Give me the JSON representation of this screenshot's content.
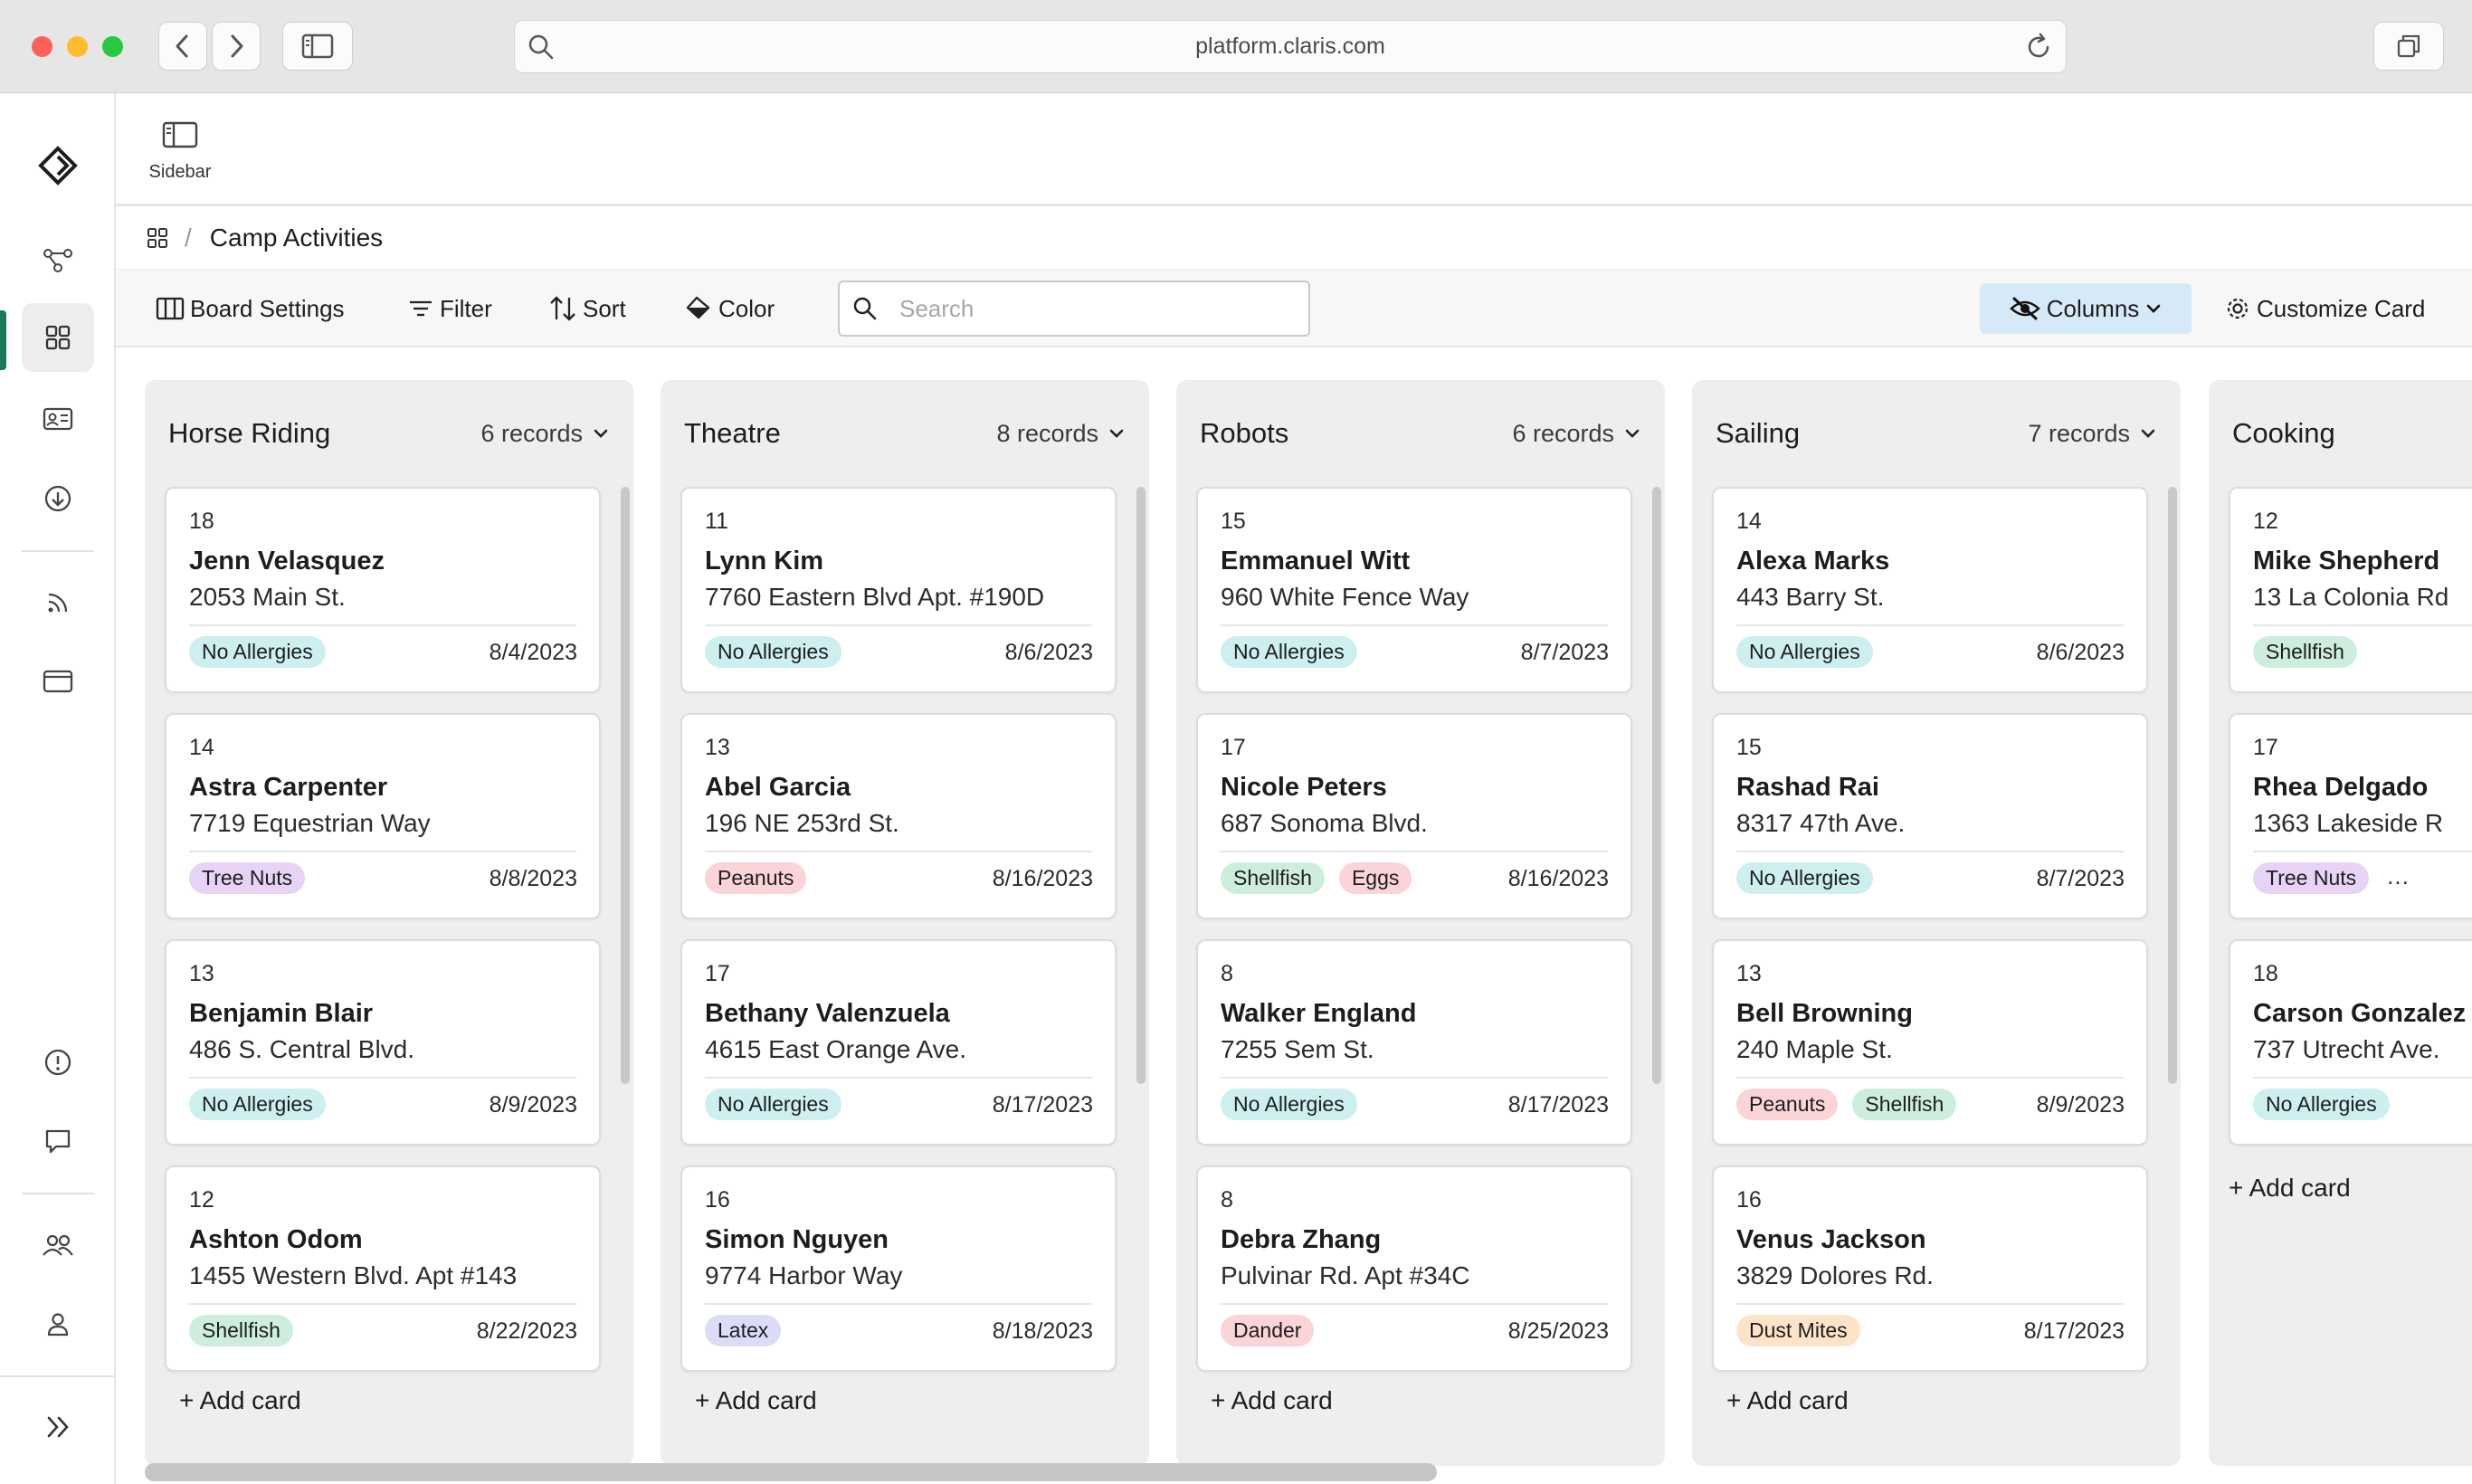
{
  "browser": {
    "url": "platform.claris.com"
  },
  "topbar": {
    "sidebar_label": "Sidebar"
  },
  "breadcrumb": {
    "title": "Camp Activities"
  },
  "toolbar": {
    "board_settings": "Board Settings",
    "filter": "Filter",
    "sort": "Sort",
    "color": "Color",
    "search_placeholder": "Search",
    "columns": "Columns",
    "customize_card": "Customize Card"
  },
  "colors": {
    "no_allergies": "#cdeff0",
    "shellfish": "#cdeedd",
    "tree_nuts": "#e8d3f7",
    "peanuts": "#fbd4d8",
    "eggs": "#fbd4d8",
    "latex": "#dcdcf7",
    "dander": "#fbd4d8",
    "dust_mites": "#fde3c8",
    "active_accent": "#1b7a5a"
  },
  "board": {
    "add_card_label": "+ Add card",
    "columns": [
      {
        "title": "Horse Riding",
        "count": "6 records",
        "cards": [
          {
            "num": "18",
            "name": "Jenn Velasquez",
            "address": "2053 Main St.",
            "tags": [
              {
                "label": "No Allergies",
                "color": "teal"
              }
            ],
            "date": "8/4/2023"
          },
          {
            "num": "14",
            "name": "Astra Carpenter",
            "address": "7719 Equestrian Way",
            "tags": [
              {
                "label": "Tree Nuts",
                "color": "purple"
              }
            ],
            "date": "8/8/2023"
          },
          {
            "num": "13",
            "name": "Benjamin Blair",
            "address": "486 S. Central Blvd.",
            "tags": [
              {
                "label": "No Allergies",
                "color": "teal"
              }
            ],
            "date": "8/9/2023"
          },
          {
            "num": "12",
            "name": "Ashton Odom",
            "address": "1455 Western Blvd. Apt #143",
            "tags": [
              {
                "label": "Shellfish",
                "color": "green"
              }
            ],
            "date": "8/22/2023"
          }
        ]
      },
      {
        "title": "Theatre",
        "count": "8 records",
        "cards": [
          {
            "num": "11",
            "name": "Lynn Kim",
            "address": "7760 Eastern Blvd Apt. #190D",
            "tags": [
              {
                "label": "No Allergies",
                "color": "teal"
              }
            ],
            "date": "8/6/2023"
          },
          {
            "num": "13",
            "name": "Abel Garcia",
            "address": "196 NE 253rd St.",
            "tags": [
              {
                "label": "Peanuts",
                "color": "pink"
              }
            ],
            "date": "8/16/2023"
          },
          {
            "num": "17",
            "name": "Bethany Valenzuela",
            "address": "4615 East Orange Ave.",
            "tags": [
              {
                "label": "No Allergies",
                "color": "teal"
              }
            ],
            "date": "8/17/2023"
          },
          {
            "num": "16",
            "name": "Simon Nguyen",
            "address": "9774 Harbor Way",
            "tags": [
              {
                "label": "Latex",
                "color": "blue"
              }
            ],
            "date": "8/18/2023"
          }
        ]
      },
      {
        "title": "Robots",
        "count": "6 records",
        "cards": [
          {
            "num": "15",
            "name": "Emmanuel Witt",
            "address": "960 White Fence Way",
            "tags": [
              {
                "label": "No Allergies",
                "color": "teal"
              }
            ],
            "date": "8/7/2023"
          },
          {
            "num": "17",
            "name": "Nicole Peters",
            "address": "687 Sonoma Blvd.",
            "tags": [
              {
                "label": "Shellfish",
                "color": "green"
              },
              {
                "label": "Eggs",
                "color": "pink"
              }
            ],
            "date": "8/16/2023"
          },
          {
            "num": "8",
            "name": "Walker England",
            "address": "7255 Sem St.",
            "tags": [
              {
                "label": "No Allergies",
                "color": "teal"
              }
            ],
            "date": "8/17/2023"
          },
          {
            "num": "8",
            "name": "Debra Zhang",
            "address": "Pulvinar Rd. Apt #34C",
            "tags": [
              {
                "label": "Dander",
                "color": "pink"
              }
            ],
            "date": "8/25/2023"
          }
        ]
      },
      {
        "title": "Sailing",
        "count": "7 records",
        "cards": [
          {
            "num": "14",
            "name": "Alexa Marks",
            "address": "443 Barry St.",
            "tags": [
              {
                "label": "No Allergies",
                "color": "teal"
              }
            ],
            "date": "8/6/2023"
          },
          {
            "num": "15",
            "name": "Rashad Rai",
            "address": "8317 47th Ave.",
            "tags": [
              {
                "label": "No Allergies",
                "color": "teal"
              }
            ],
            "date": "8/7/2023"
          },
          {
            "num": "13",
            "name": "Bell Browning",
            "address": "240 Maple St.",
            "tags": [
              {
                "label": "Peanuts",
                "color": "pink"
              },
              {
                "label": "Shellfish",
                "color": "green"
              }
            ],
            "date": "8/9/2023"
          },
          {
            "num": "16",
            "name": "Venus Jackson",
            "address": "3829 Dolores Rd.",
            "tags": [
              {
                "label": "Dust Mites",
                "color": "orange"
              }
            ],
            "date": "8/17/2023"
          }
        ]
      },
      {
        "title": "Cooking",
        "count": "",
        "cards": [
          {
            "num": "12",
            "name": "Mike Shepherd",
            "address": "13 La Colonia Rd",
            "tags": [
              {
                "label": "Shellfish",
                "color": "green"
              }
            ],
            "date": ""
          },
          {
            "num": "17",
            "name": "Rhea Delgado",
            "address": "1363 Lakeside R",
            "tags": [
              {
                "label": "Tree Nuts",
                "color": "purple"
              }
            ],
            "more": "...",
            "date": ""
          },
          {
            "num": "18",
            "name": "Carson Gonzalez",
            "address": "737 Utrecht Ave.",
            "tags": [
              {
                "label": "No Allergies",
                "color": "teal"
              }
            ],
            "date": ""
          }
        ]
      }
    ]
  }
}
